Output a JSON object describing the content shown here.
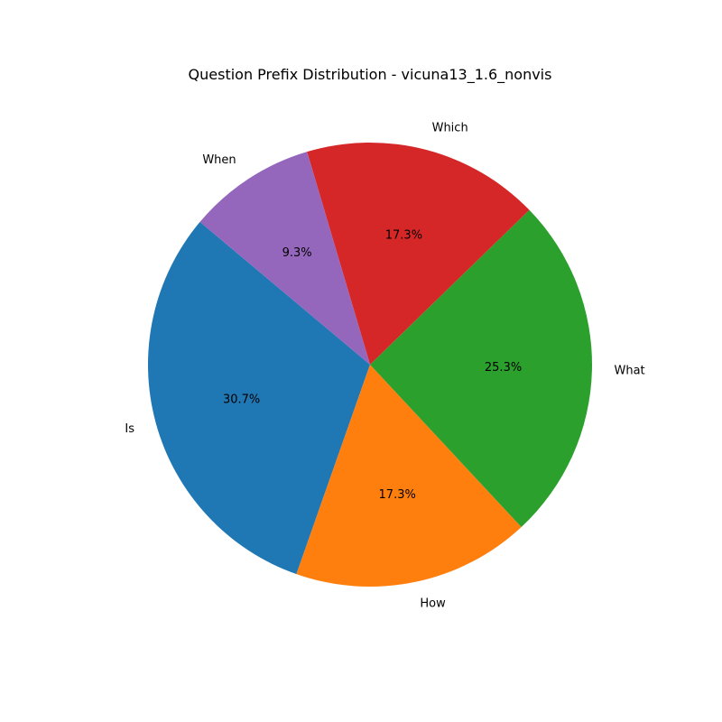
{
  "chart_data": {
    "type": "pie",
    "title": "Question Prefix Distribution - vicuna13_1.6_nonvis",
    "start_angle_deg": 140,
    "direction": "counterclockwise",
    "slices": [
      {
        "label": "Is",
        "value": 30.7,
        "pct_label": "30.7%",
        "color": "#1f77b4"
      },
      {
        "label": "How",
        "value": 17.3,
        "pct_label": "17.3%",
        "color": "#ff7f0e"
      },
      {
        "label": "What",
        "value": 25.3,
        "pct_label": "25.3%",
        "color": "#2ca02c"
      },
      {
        "label": "Which",
        "value": 17.3,
        "pct_label": "17.3%",
        "color": "#d62728"
      },
      {
        "label": "When",
        "value": 9.3,
        "pct_label": "9.3%",
        "color": "#9467bd"
      }
    ]
  }
}
